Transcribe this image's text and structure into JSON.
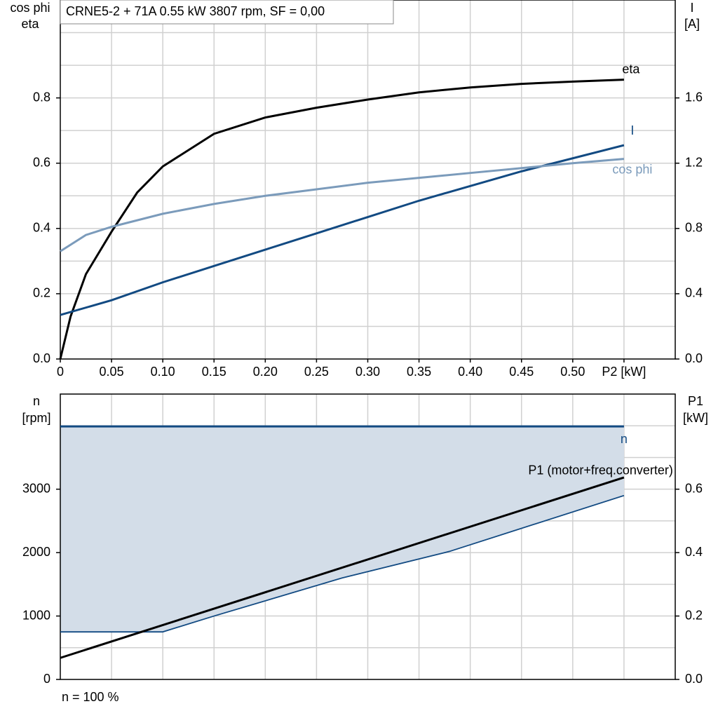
{
  "chart_data": [
    {
      "type": "line",
      "title": "CRNE5-2 + 71A   0.55 kW   3807 rpm, SF = 0,00",
      "ylabel": [
        "cos phi",
        "eta"
      ],
      "y2label": [
        "I",
        "[A]"
      ],
      "xlim": [
        0,
        0.6
      ],
      "ylim": [
        0,
        1.1
      ],
      "y2lim": [
        0,
        2.2
      ],
      "xticks": [
        0,
        0.05,
        {
          "value": 0.1,
          "label": "0.10"
        },
        0.15,
        {
          "value": 0.2,
          "label": "0.20"
        },
        0.25,
        {
          "value": 0.3,
          "label": "0.30"
        },
        0.35,
        {
          "value": 0.4,
          "label": "0.40"
        },
        0.45,
        {
          "value": 0.5,
          "label": "0.50"
        },
        {
          "value": 0.55,
          "label": "P2 [kW]"
        }
      ],
      "yticks": [
        {
          "value": 0,
          "label": "0.0"
        },
        0.2,
        0.4,
        0.6,
        0.8
      ],
      "y2ticks": [
        {
          "value": 0,
          "label": "0.0"
        },
        0.4,
        0.8,
        1.2,
        1.6
      ],
      "ygrid": [
        0.1,
        0.2,
        0.3,
        0.4,
        0.5,
        0.6,
        0.7,
        0.8,
        0.9,
        1.0
      ],
      "series": [
        {
          "name": "eta",
          "color": "#000000",
          "x": [
            0,
            0.01,
            0.025,
            0.05,
            0.075,
            0.1,
            0.15,
            0.2,
            0.25,
            0.3,
            0.35,
            0.4,
            0.45,
            0.5,
            0.55
          ],
          "values": [
            0,
            0.13,
            0.26,
            0.39,
            0.51,
            0.59,
            0.69,
            0.74,
            0.77,
            0.795,
            0.817,
            0.832,
            0.843,
            0.85,
            0.856
          ]
        },
        {
          "name": "I",
          "color": "#124a82",
          "axis": "y2",
          "x": [
            0,
            0.05,
            0.1,
            0.15,
            0.2,
            0.25,
            0.3,
            0.35,
            0.4,
            0.45,
            0.5,
            0.55
          ],
          "values": [
            0.27,
            0.36,
            0.47,
            0.57,
            0.67,
            0.77,
            0.87,
            0.97,
            1.06,
            1.15,
            1.23,
            1.31
          ]
        },
        {
          "name": "cos phi",
          "color": "#7b9bbb",
          "x": [
            0,
            0.025,
            0.05,
            0.1,
            0.15,
            0.2,
            0.25,
            0.3,
            0.35,
            0.4,
            0.45,
            0.5,
            0.55
          ],
          "values": [
            0.33,
            0.38,
            0.405,
            0.445,
            0.475,
            0.5,
            0.52,
            0.54,
            0.555,
            0.57,
            0.585,
            0.6,
            0.613
          ]
        }
      ]
    },
    {
      "type": "line",
      "ylabel": [
        "n",
        "[rpm]"
      ],
      "y2label": [
        "P1",
        "[kW]"
      ],
      "note": "n = 100 %",
      "xlim": [
        0,
        0.6
      ],
      "ylim": [
        0,
        4500
      ],
      "y2lim": [
        0,
        0.9
      ],
      "xgrid": [
        0.05,
        0.1,
        0.15,
        0.2,
        0.25,
        0.3,
        0.35,
        0.4,
        0.45,
        0.5,
        0.55
      ],
      "yticks": [
        0,
        1000,
        2000,
        3000
      ],
      "y2ticks": [
        {
          "value": 0,
          "label": "0.0"
        },
        0.2,
        0.4,
        0.6
      ],
      "ygrid": [
        500,
        1000,
        1500,
        2000,
        2500,
        3000,
        3500,
        4000
      ],
      "area_color": "#d3dde8",
      "series": [
        {
          "name": "n",
          "color": "#124a82",
          "x": [
            0,
            0.55
          ],
          "values": [
            3990,
            3990
          ]
        },
        {
          "color": "#124a82",
          "x": [
            0,
            0.1,
            0.15,
            0.275,
            0.38,
            0.55
          ],
          "values": [
            750,
            750,
            1000,
            1600,
            2020,
            2900
          ]
        },
        {
          "name": "P1 (motor+freq.converter)",
          "color": "#000000",
          "axis": "y2",
          "x": [
            0,
            0.55
          ],
          "values": [
            0.068,
            0.637
          ]
        }
      ]
    }
  ]
}
